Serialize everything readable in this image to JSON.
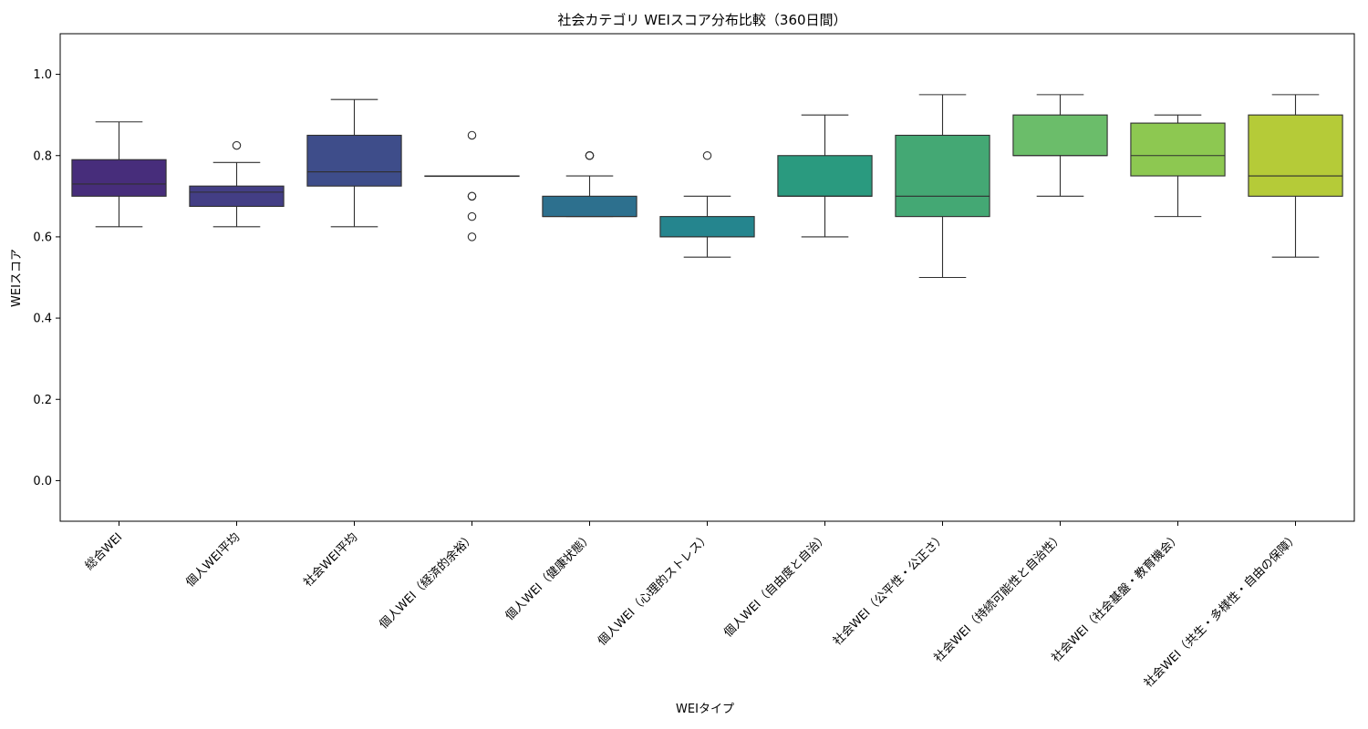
{
  "chart_data": {
    "type": "box",
    "title": "社会カテゴリ WEIスコア分布比較（360日間）",
    "xlabel": "WEIタイプ",
    "ylabel": "WEIスコア",
    "ylim": [
      -0.1,
      1.1
    ],
    "yticks": [
      "0.0",
      "0.2",
      "0.4",
      "0.6",
      "0.8",
      "1.0"
    ],
    "ytick_values": [
      0.0,
      0.2,
      0.4,
      0.6,
      0.8,
      1.0
    ],
    "grid": false,
    "categories": [
      "総合WEI",
      "個人WEI平均",
      "社会WEI平均",
      "個人WEI（経済的余裕）",
      "個人WEI（健康状態）",
      "個人WEI（心理的ストレス）",
      "個人WEI（自由度と自治）",
      "社会WEI（公平性・公正さ）",
      "社会WEI（持続可能性と自治性）",
      "社会WEI（社会基盤・教育機会）",
      "社会WEI（共生・多様性・自由の保障）"
    ],
    "boxes": [
      {
        "whisker_low": 0.625,
        "q1": 0.7,
        "median": 0.73,
        "q3": 0.79,
        "whisker_high": 0.883,
        "outliers": [],
        "color": "#472d7b"
      },
      {
        "whisker_low": 0.625,
        "q1": 0.675,
        "median": 0.71,
        "q3": 0.725,
        "whisker_high": 0.783,
        "outliers": [
          0.825
        ],
        "color": "#433e85"
      },
      {
        "whisker_low": 0.625,
        "q1": 0.725,
        "median": 0.76,
        "q3": 0.85,
        "whisker_high": 0.938,
        "outliers": [],
        "color": "#3e4d8a"
      },
      {
        "whisker_low": 0.75,
        "q1": 0.75,
        "median": 0.75,
        "q3": 0.75,
        "whisker_high": 0.75,
        "outliers": [
          0.85,
          0.7,
          0.7,
          0.65,
          0.6
        ],
        "color": "#38588c"
      },
      {
        "whisker_low": 0.65,
        "q1": 0.65,
        "median": 0.65,
        "q3": 0.7,
        "whisker_high": 0.75,
        "outliers": [
          0.8,
          0.8,
          0.8
        ],
        "color": "#2d708e"
      },
      {
        "whisker_low": 0.55,
        "q1": 0.6,
        "median": 0.6,
        "q3": 0.65,
        "whisker_high": 0.7,
        "outliers": [
          0.8
        ],
        "color": "#25858e"
      },
      {
        "whisker_low": 0.6,
        "q1": 0.7,
        "median": 0.7,
        "q3": 0.8,
        "whisker_high": 0.9,
        "outliers": [],
        "color": "#2a9a7f"
      },
      {
        "whisker_low": 0.5,
        "q1": 0.65,
        "median": 0.7,
        "q3": 0.85,
        "whisker_high": 0.95,
        "outliers": [],
        "color": "#44a874"
      },
      {
        "whisker_low": 0.7,
        "q1": 0.8,
        "median": 0.8,
        "q3": 0.9,
        "whisker_high": 0.95,
        "outliers": [],
        "color": "#6bbd6a"
      },
      {
        "whisker_low": 0.65,
        "q1": 0.75,
        "median": 0.8,
        "q3": 0.88,
        "whisker_high": 0.9,
        "outliers": [],
        "color": "#8dc851"
      },
      {
        "whisker_low": 0.55,
        "q1": 0.7,
        "median": 0.75,
        "q3": 0.9,
        "whisker_high": 0.95,
        "outliers": [],
        "color": "#b5cb38"
      }
    ]
  }
}
